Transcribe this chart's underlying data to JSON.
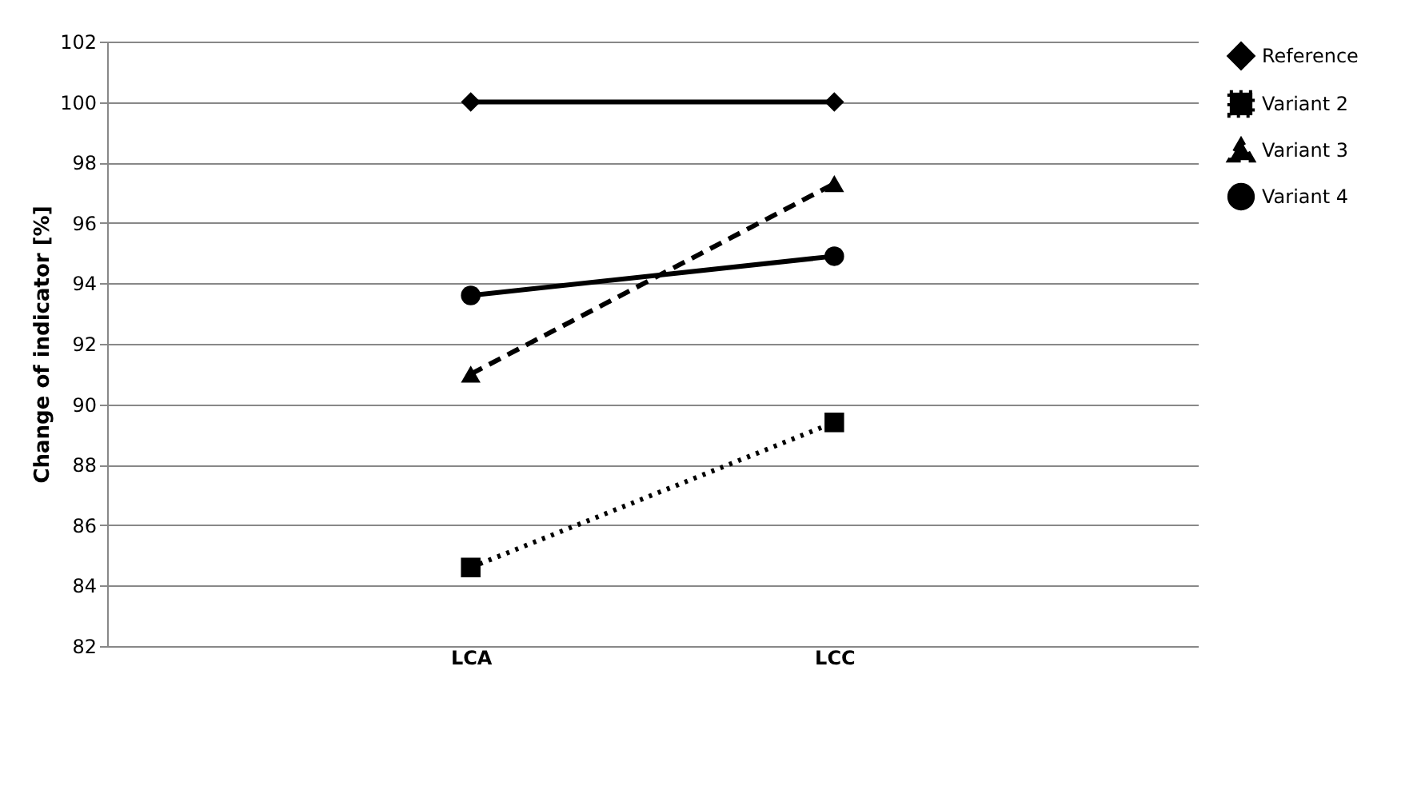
{
  "chart_data": {
    "type": "line",
    "ylabel": "Change of indicator [%]",
    "categories": [
      "LCA",
      "LCC"
    ],
    "ylim": [
      82,
      102
    ],
    "yticks": [
      82,
      84,
      86,
      88,
      90,
      92,
      94,
      96,
      98,
      100,
      102
    ],
    "grid": "y",
    "legend": "right",
    "series": [
      {
        "name": "Reference",
        "color": "#000000",
        "marker": "diamond",
        "line_style": "solid",
        "values": [
          100,
          100
        ]
      },
      {
        "name": "Variant 2",
        "color": "#000000",
        "marker": "square",
        "line_style": "dotted",
        "values": [
          84.6,
          89.4
        ]
      },
      {
        "name": "Variant 3",
        "color": "#000000",
        "marker": "triangle",
        "line_style": "dashed",
        "values": [
          91.0,
          97.3
        ]
      },
      {
        "name": "Variant 4",
        "color": "#000000",
        "marker": "circle",
        "line_style": "solid",
        "values": [
          93.6,
          94.9
        ]
      }
    ]
  }
}
